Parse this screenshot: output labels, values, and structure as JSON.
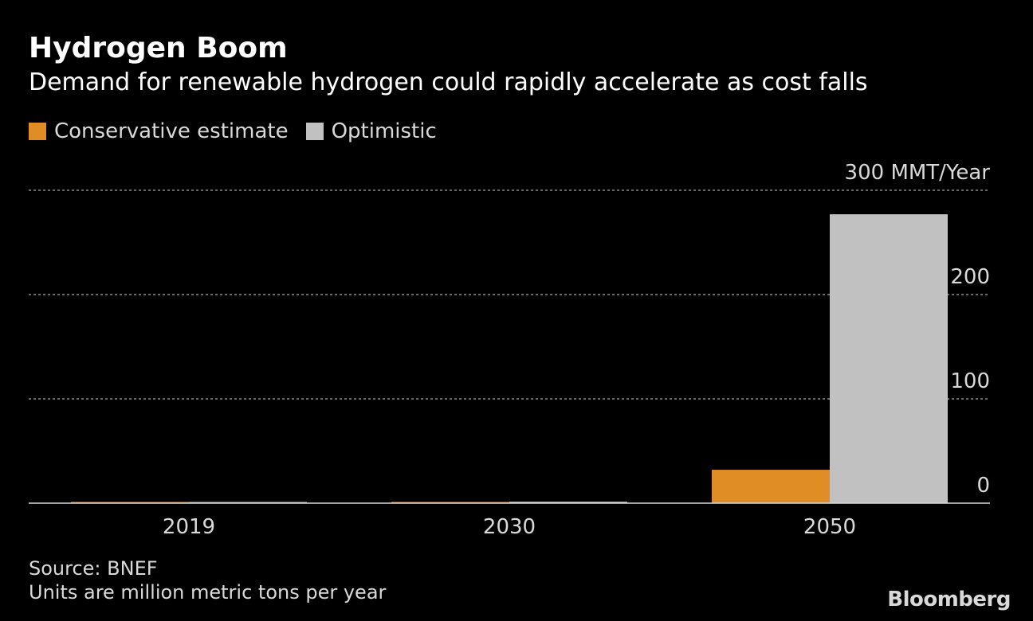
{
  "header": {
    "title": "Hydrogen Boom",
    "subtitle": "Demand for renewable hydrogen could rapidly accelerate as cost falls"
  },
  "legend": {
    "items": [
      {
        "label": "Conservative estimate",
        "color": "#e08d26"
      },
      {
        "label": "Optimistic",
        "color": "#c1c1c1"
      }
    ]
  },
  "footer": {
    "source": "Source: BNEF",
    "note": "Units are million metric tons per year",
    "brand": "Bloomberg"
  },
  "chart_data": {
    "type": "bar",
    "categories": [
      "2019",
      "2030",
      "2050"
    ],
    "series": [
      {
        "name": "Conservative estimate",
        "color": "#e08d26",
        "values": [
          0.5,
          0.7,
          32
        ]
      },
      {
        "name": "Optimistic",
        "color": "#c1c1c1",
        "values": [
          0.5,
          1.4,
          277
        ]
      }
    ],
    "y_ticks": [
      0,
      100,
      200,
      300
    ],
    "y_tick_labels": [
      "0",
      "100",
      "200",
      "300 MMT/Year"
    ],
    "ylim": [
      0,
      300
    ],
    "grid": true,
    "axis_position": "right"
  }
}
